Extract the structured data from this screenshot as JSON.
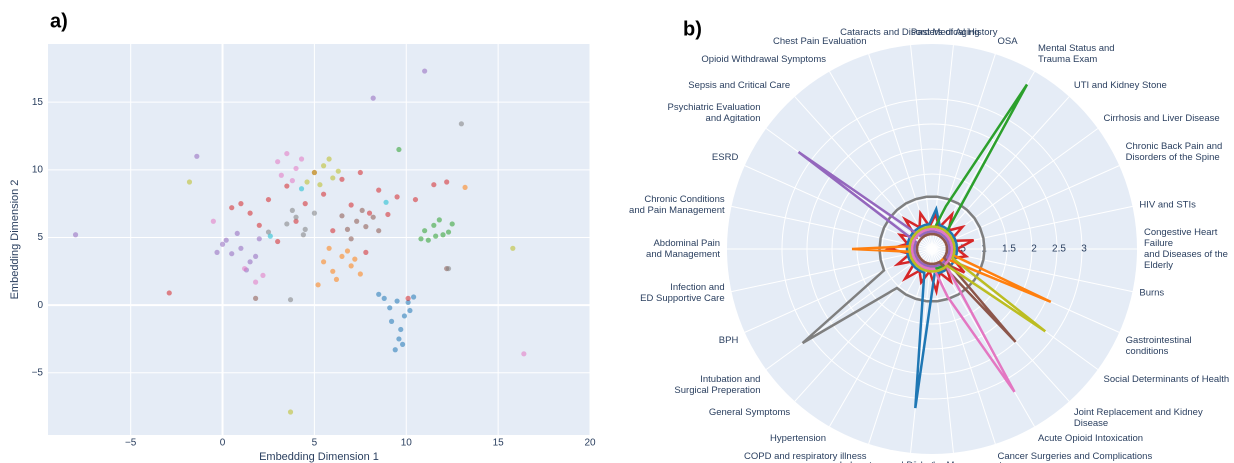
{
  "chart_data": [
    {
      "type": "scatter",
      "title": "a)",
      "xlabel": "Embedding Dimension 1",
      "ylabel": "Embedding Dimension 2",
      "xlim": [
        -9.5,
        20
      ],
      "ylim": [
        -9.6,
        19.3
      ],
      "grid": true,
      "xticks": [
        {
          "value": -5,
          "label": "−5"
        },
        0,
        5,
        10,
        15,
        20
      ],
      "yticks": [
        {
          "value": -5,
          "label": "−5"
        },
        0,
        5,
        10,
        15
      ],
      "series": [
        {
          "color": "#1f77b4",
          "x": [
            9.2,
            9.6,
            10.1,
            8.8,
            9.9,
            10.4,
            9.4,
            9.7,
            9.1,
            10.2,
            9.5,
            8.5,
            9.8
          ],
          "y": [
            -1.2,
            -2.5,
            0.2,
            0.5,
            -0.8,
            0.6,
            -3.3,
            -1.8,
            -0.2,
            -0.4,
            0.3,
            0.8,
            -2.9
          ]
        },
        {
          "color": "#d62728",
          "x": [
            0.5,
            1.5,
            2.5,
            3.5,
            4.5,
            5.5,
            6.5,
            7.5,
            8.5,
            9.5,
            10.5,
            11.5,
            12.2,
            2,
            4,
            6,
            8,
            3,
            7,
            9,
            5,
            1,
            -2.9,
            7.8,
            10.1
          ],
          "y": [
            7.2,
            6.8,
            7.8,
            8.8,
            7.5,
            8.2,
            9.3,
            9.8,
            8.5,
            8,
            7.8,
            8.9,
            9.1,
            5.9,
            6.2,
            5.5,
            6.8,
            4.7,
            7.4,
            6.7,
            9.8,
            7.5,
            0.9,
            3.9,
            0.5
          ]
        },
        {
          "color": "#2ca02c",
          "x": [
            11,
            11.5,
            12,
            12.5,
            11.2,
            11.8,
            12.3,
            10.8,
            11.6,
            9.6
          ],
          "y": [
            5.5,
            5.9,
            5.2,
            6,
            4.8,
            6.3,
            5.4,
            4.9,
            5.1,
            11.5
          ]
        },
        {
          "color": "#8c564b",
          "x": [
            6.8,
            7.3,
            7.8,
            8.2,
            7,
            7.6,
            8.5,
            6.5,
            12.2,
            1.8
          ],
          "y": [
            5.6,
            6.2,
            5.8,
            6.5,
            4.9,
            7,
            5.5,
            6.6,
            2.7,
            0.5
          ]
        },
        {
          "color": "#ff7f0e",
          "x": [
            5.5,
            6,
            6.5,
            7,
            7.5,
            6.2,
            6.8,
            5.8,
            7.2,
            5.2,
            13.2
          ],
          "y": [
            3.2,
            2.5,
            3.6,
            2.9,
            2.3,
            1.9,
            4,
            4.2,
            3.4,
            1.5,
            8.7
          ]
        },
        {
          "color": "#9467bd",
          "x": [
            0,
            0.5,
            1,
            1.5,
            2,
            0.8,
            1.3,
            -0.3,
            1.8,
            0.2,
            -8,
            11,
            8.2,
            -1.4
          ],
          "y": [
            4.5,
            3.8,
            4.2,
            3.2,
            4.9,
            5.3,
            2.6,
            3.9,
            3.6,
            4.8,
            5.2,
            17.3,
            15.3,
            11
          ]
        },
        {
          "color": "#e377c2",
          "x": [
            3,
            3.5,
            4,
            3.2,
            3.8,
            4.3,
            1.2,
            2.2,
            1.8,
            16.4,
            -0.5
          ],
          "y": [
            10.6,
            11.2,
            10.1,
            9.6,
            9.2,
            10.8,
            2.7,
            2.2,
            1.7,
            -3.6,
            6.2
          ]
        },
        {
          "color": "#7f7f7f",
          "x": [
            3.5,
            4,
            4.5,
            3.8,
            4.4,
            2.5,
            5,
            3.7,
            13,
            12.3
          ],
          "y": [
            6,
            6.5,
            5.6,
            7,
            5.2,
            5.4,
            6.8,
            0.4,
            13.4,
            2.7
          ]
        },
        {
          "color": "#bcbd22",
          "x": [
            5,
            5.5,
            6,
            5.3,
            5.8,
            6.3,
            4.6,
            3.7,
            -1.8,
            15.8
          ],
          "y": [
            9.8,
            10.3,
            9.4,
            8.9,
            10.8,
            9.9,
            9.1,
            -7.9,
            9.1,
            4.2
          ]
        },
        {
          "color": "#17becf",
          "x": [
            4.3,
            8.9,
            2.6
          ],
          "y": [
            8.6,
            7.6,
            5.1
          ]
        }
      ]
    },
    {
      "type": "polar",
      "title": "b)",
      "direction": "clockwise",
      "grid": true,
      "rlim": [
        0,
        4.1
      ],
      "rticks": [
        0.5,
        1,
        1.5,
        2,
        2.5,
        3
      ],
      "categories": [
        "Past Medical History",
        "OSA",
        "Mental Status and\nTrauma Exam",
        "UTI and Kidney Stone",
        "Cirrhosis and Liver Disease",
        "Chronic Back Pain and\nDisorders of the Spine",
        "HIV and STIs",
        "Congestive Heart Failure\nand Diseases of the Elderly",
        "Burns",
        "Gastrointestinal conditions",
        "Social Determinants of Health",
        "Joint Replacement and Kidney Disease",
        "Acute Opioid Intoxication",
        "Cancer Surgeries and Complications",
        "Diabetes Management",
        "Laboratory and urine drug screen",
        "COPD and respiratory illness",
        "Hypertension",
        "General Symptoms",
        "Intubation and\nSurgical Preperation",
        "BPH",
        "Infection and\nED Supportive Care",
        "Abdominal Pain\nand Management",
        "Chronic Conditions\nand Pain Management",
        "ESRD",
        "Psychiatric Evaluation\nand Agitation",
        "Sepsis and Critical Care",
        "Opioid Withdrawal Symptoms",
        "Chest Pain Evaluation",
        "Cataracts and Disorders of Aging"
      ],
      "series": [
        {
          "color": "#7f7f7f",
          "values": [
            1.05,
            1.05,
            1.05,
            1.05,
            1.05,
            1.05,
            1.05,
            1.05,
            1.05,
            1.05,
            1.05,
            1.05,
            1.05,
            1.05,
            1.05,
            1.05,
            1.05,
            1.05,
            1.05,
            3.2,
            1.05,
            1.05,
            1.05,
            1.05,
            1.05,
            1.05,
            1.05,
            1.05,
            1.05,
            1.05
          ]
        },
        {
          "color": "#d62728",
          "values": [
            0.7,
            0.45,
            0.8,
            0.5,
            0.75,
            0.4,
            0.85,
            0.5,
            0.7,
            0.45,
            0.8,
            0.4,
            0.75,
            0.5,
            0.85,
            0.45,
            0.7,
            0.5,
            0.8,
            0.4,
            0.75,
            0.45,
            0.85,
            0.5,
            0.7,
            0.4,
            0.8,
            0.5,
            0.75,
            0.45
          ]
        },
        {
          "color": "#1f77b4",
          "values": [
            0.8,
            0.5,
            0.5,
            0.5,
            0.5,
            0.5,
            0.5,
            0.5,
            0.5,
            0.5,
            0.5,
            0.5,
            0.5,
            0.5,
            0.5,
            3.2,
            0.5,
            0.5,
            0.5,
            0.5,
            0.5,
            0.5,
            0.5,
            0.5,
            0.5,
            0.5,
            0.5,
            0.5,
            0.5,
            0.5
          ]
        },
        {
          "color": "#ff7f0e",
          "values": [
            0.3,
            0.3,
            0.3,
            0.3,
            0.3,
            0.3,
            0.3,
            0.3,
            0.3,
            2.6,
            0.3,
            0.3,
            0.3,
            0.3,
            0.3,
            0.3,
            0.3,
            0.3,
            0.3,
            0.3,
            0.3,
            0.3,
            1.6,
            0.3,
            0.3,
            0.3,
            0.3,
            0.3,
            0.3,
            0.3
          ]
        },
        {
          "color": "#2ca02c",
          "values": [
            0.4,
            0.9,
            3.8,
            0.4,
            0.4,
            0.4,
            0.4,
            0.4,
            0.4,
            0.4,
            0.4,
            0.4,
            0.4,
            0.4,
            0.4,
            0.4,
            0.4,
            0.4,
            0.4,
            0.4,
            0.4,
            0.4,
            0.4,
            0.4,
            0.4,
            0.4,
            0.4,
            0.4,
            0.4,
            0.4
          ]
        },
        {
          "color": "#9467bd",
          "values": [
            0.35,
            0.35,
            0.35,
            0.35,
            0.35,
            0.35,
            0.35,
            0.35,
            0.35,
            0.35,
            0.35,
            0.35,
            0.35,
            0.35,
            0.35,
            0.35,
            0.35,
            0.35,
            0.35,
            0.35,
            0.35,
            0.35,
            0.35,
            0.35,
            0.35,
            3.3,
            0.35,
            0.35,
            0.35,
            0.35
          ]
        },
        {
          "color": "#8c564b",
          "values": [
            0.3,
            0.3,
            0.3,
            0.3,
            0.3,
            0.3,
            0.3,
            0.3,
            0.3,
            0.3,
            0.3,
            2.5,
            0.3,
            0.3,
            0.3,
            0.3,
            0.3,
            0.3,
            0.3,
            0.3,
            0.3,
            0.3,
            0.3,
            0.3,
            0.3,
            0.3,
            0.3,
            0.3,
            0.3,
            0.3
          ]
        },
        {
          "color": "#e377c2",
          "values": [
            0.4,
            0.4,
            0.4,
            0.4,
            0.4,
            0.4,
            0.4,
            0.4,
            0.4,
            0.4,
            0.4,
            0.4,
            3.3,
            1.0,
            0.4,
            0.4,
            0.4,
            0.4,
            0.4,
            0.4,
            0.4,
            0.4,
            0.4,
            0.4,
            0.4,
            0.4,
            0.4,
            0.4,
            0.4,
            0.4
          ]
        },
        {
          "color": "#bcbd22",
          "values": [
            0.45,
            0.45,
            0.45,
            0.45,
            0.45,
            0.45,
            0.45,
            0.45,
            0.45,
            0.45,
            2.8,
            0.45,
            0.45,
            0.45,
            0.45,
            0.45,
            0.45,
            0.45,
            0.45,
            0.45,
            0.45,
            0.45,
            0.45,
            0.45,
            0.45,
            0.45,
            0.45,
            0.45,
            0.45,
            0.45
          ]
        }
      ]
    }
  ]
}
